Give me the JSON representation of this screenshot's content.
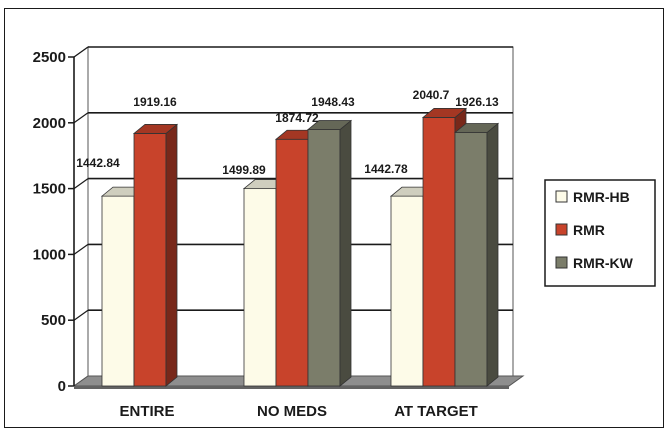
{
  "chart_data": {
    "type": "bar",
    "categories": [
      "ENTIRE",
      "NO MEDS",
      "AT TARGET"
    ],
    "series": [
      {
        "name": "RMR-HB",
        "values": [
          1442.84,
          1499.89,
          1442.78
        ]
      },
      {
        "name": "RMR",
        "values": [
          1919.16,
          1874.72,
          2040.7
        ]
      },
      {
        "name": "RMR-KW",
        "values": [
          null,
          1948.43,
          1926.13
        ]
      }
    ],
    "data_labels": [
      [
        "1442.84",
        "1919.16",
        null
      ],
      [
        "1499.89",
        "1874.72",
        "1948.43"
      ],
      [
        "1442.78",
        "2040.7",
        "1926.13"
      ]
    ],
    "ylim": [
      0,
      2500
    ],
    "yticks": [
      0,
      500,
      1000,
      1500,
      2000,
      2500
    ],
    "ytick_labels": [
      "0",
      "500",
      "1000",
      "1500",
      "2000",
      "2500"
    ],
    "grid": true,
    "style": "3d-bar",
    "legend_position": "right",
    "colors": {
      "RMR-HB": "#fdfbe8",
      "RMR": "#c8432b",
      "RMR-KW": "#7b7d6a",
      "gridline": "#1a1a1a",
      "floor": "#8e8e8e"
    }
  }
}
